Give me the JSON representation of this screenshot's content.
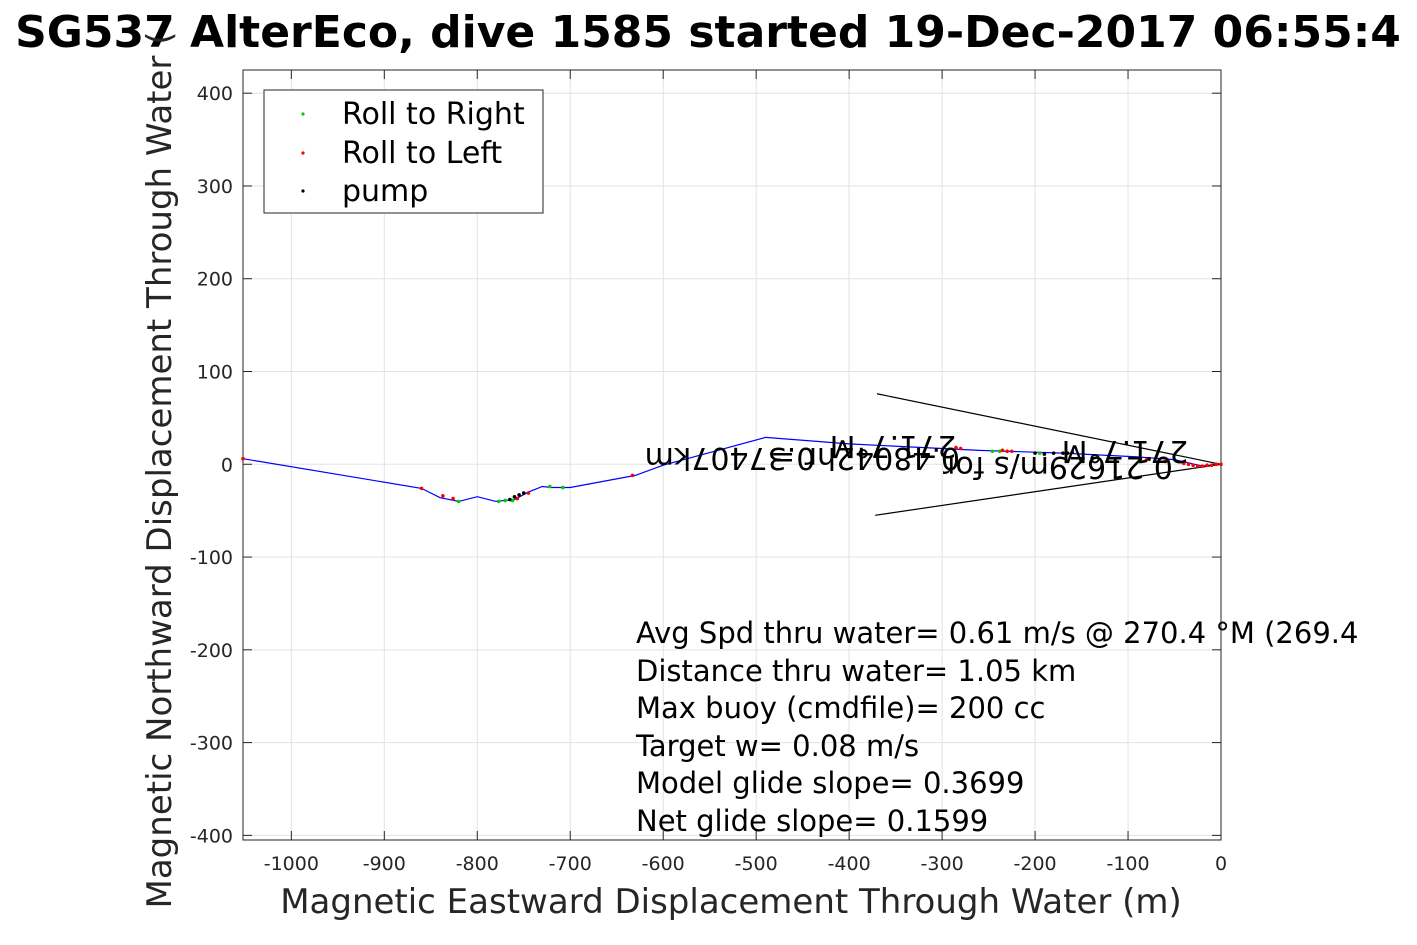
{
  "chart_data": {
    "type": "scatter",
    "title": "SG537 AlterEco, dive 1585 started 19-Dec-2017 06:55:4",
    "xlabel": "Magnetic Eastward Displacement Through Water (m)",
    "ylabel": "Magnetic Northward Displacement Through Water (",
    "xlim": [
      -1052,
      0
    ],
    "ylim": [
      -405,
      425
    ],
    "grid": true,
    "xticks": [
      -1000,
      -900,
      -800,
      -700,
      -600,
      -500,
      -400,
      -300,
      -200,
      -100,
      0
    ],
    "yticks": [
      400,
      300,
      200,
      100,
      0,
      -100,
      -200,
      -300,
      -400
    ],
    "xtick_labels": [
      "-1000",
      "-900",
      "-800",
      "-700",
      "-600",
      "-500",
      "-400",
      "-300",
      "-200",
      "-100",
      "0"
    ],
    "ytick_labels": [
      "400",
      "300",
      "200",
      "100",
      "0",
      "-100",
      "-200",
      "-300",
      "-400"
    ],
    "legend_position": "top-left",
    "track": {
      "name": "track",
      "color": "#0000ff",
      "x": [
        0,
        -20,
        -50,
        -90,
        -130,
        -170,
        -200,
        -230,
        -260,
        -300,
        -400,
        -490,
        -600,
        -630,
        -700,
        -720,
        -730,
        -745,
        -760,
        -780,
        -800,
        -820,
        -840,
        -860,
        -1052
      ],
      "y": [
        0,
        -2,
        5,
        8,
        10,
        12,
        13,
        14,
        15,
        17,
        22,
        29,
        -1,
        -12,
        -25,
        -25,
        -24,
        -30,
        -38,
        -40,
        -35,
        -40,
        -36,
        -26,
        6
      ]
    },
    "series": [
      {
        "name": "Roll to Right",
        "color": "#00cc00",
        "x": [
          -777,
          -770,
          -762,
          -722,
          -708,
          -820,
          -246,
          -238,
          -195
        ],
        "y": [
          -40,
          -39,
          -39,
          -24,
          -25,
          -40,
          14,
          14,
          12
        ]
      },
      {
        "name": "Roll to Left",
        "color": "#ff0000",
        "x": [
          0,
          -5,
          -10,
          -15,
          -20,
          -25,
          -30,
          -35,
          -40,
          -60,
          -80,
          -225,
          -230,
          -235,
          -280,
          -285,
          -860,
          -837,
          -826,
          -745,
          -757,
          -633,
          -1052
        ],
        "y": [
          0,
          0,
          -1,
          -1,
          -2,
          -2,
          -1,
          0,
          1,
          3,
          5,
          14,
          14,
          15,
          17,
          18,
          -26,
          -34,
          -37,
          -31,
          -37,
          -12,
          6
        ]
      },
      {
        "name": "pump",
        "color": "#000000",
        "x": [
          -750,
          -755,
          -760,
          -765,
          -200,
          -190,
          -180,
          -170,
          -165,
          -160
        ],
        "y": [
          -31,
          -33,
          -35,
          -38,
          12,
          11,
          12,
          12,
          12,
          13
        ]
      }
    ],
    "current_arrow": {
      "color": "#000000",
      "tip": [
        0,
        0
      ],
      "upper_end": [
        -370,
        76
      ],
      "lower_end": [
        -372,
        -55
      ]
    },
    "flipped_labels": [
      "0.37407km",
      "0.48042hr =",
      "271.7°M",
      "0.21629m/s for",
      "271.7°M"
    ],
    "annotations": [
      "Avg Spd thru water=  0.61 m/s @ 270.4 °M (269.4",
      "Distance thru water=  1.05 km",
      "Max buoy (cmdfile)= 200 cc",
      "Target w= 0.08 m/s",
      "Model glide slope= 0.3699",
      "Net glide slope= 0.1599"
    ]
  }
}
